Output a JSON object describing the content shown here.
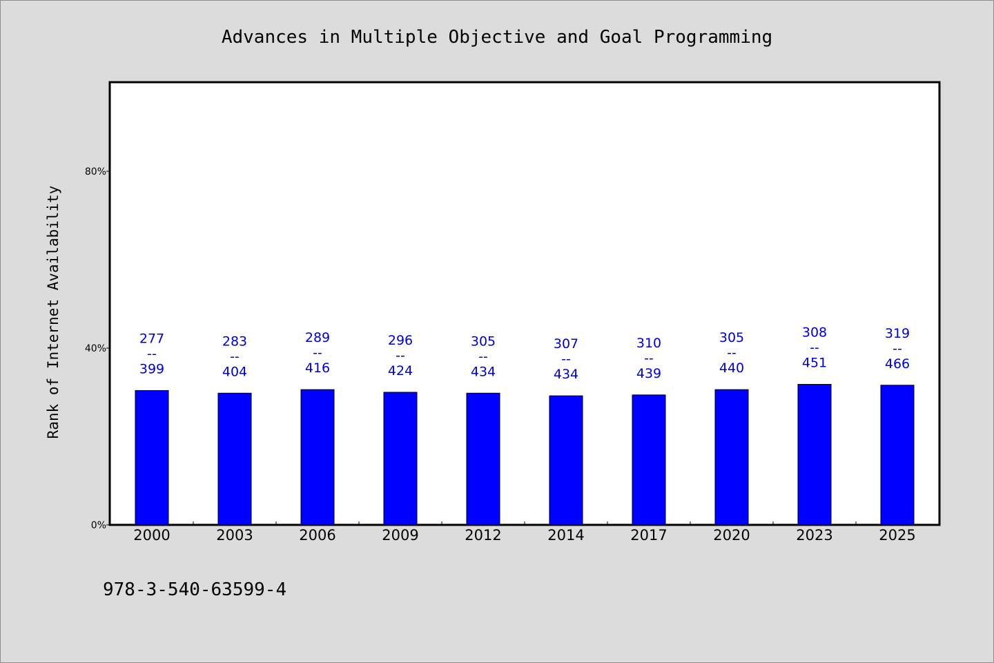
{
  "chart_data": {
    "type": "bar",
    "title": "Advances in Multiple Objective and Goal Programming",
    "xlabel": "",
    "ylabel": "Rank of Internet Availability",
    "ylim": [
      0,
      100
    ],
    "yticks": [
      {
        "value": 0,
        "label": "0%"
      },
      {
        "value": 40,
        "label": "40%"
      },
      {
        "value": 80,
        "label": "80%"
      }
    ],
    "categories": [
      "2000",
      "2003",
      "2006",
      "2009",
      "2012",
      "2014",
      "2017",
      "2020",
      "2023",
      "2025"
    ],
    "values": [
      30.4,
      29.8,
      30.6,
      30.0,
      29.8,
      29.2,
      29.4,
      30.6,
      31.8,
      31.6
    ],
    "data_labels": [
      {
        "top": "277",
        "mid": "--",
        "bottom": "399"
      },
      {
        "top": "283",
        "mid": "--",
        "bottom": "404"
      },
      {
        "top": "289",
        "mid": "--",
        "bottom": "416"
      },
      {
        "top": "296",
        "mid": "--",
        "bottom": "424"
      },
      {
        "top": "305",
        "mid": "--",
        "bottom": "434"
      },
      {
        "top": "307",
        "mid": "--",
        "bottom": "434"
      },
      {
        "top": "310",
        "mid": "--",
        "bottom": "439"
      },
      {
        "top": "305",
        "mid": "--",
        "bottom": "440"
      },
      {
        "top": "308",
        "mid": "--",
        "bottom": "451"
      },
      {
        "top": "319",
        "mid": "--",
        "bottom": "466"
      }
    ],
    "grid": false,
    "legend": "none",
    "colors": {
      "bar": "#0000ff",
      "label": "#0000cc",
      "background": "#dcdcdc",
      "plot": "#ffffff"
    }
  },
  "footer": {
    "isbn": "978-3-540-63599-4"
  }
}
